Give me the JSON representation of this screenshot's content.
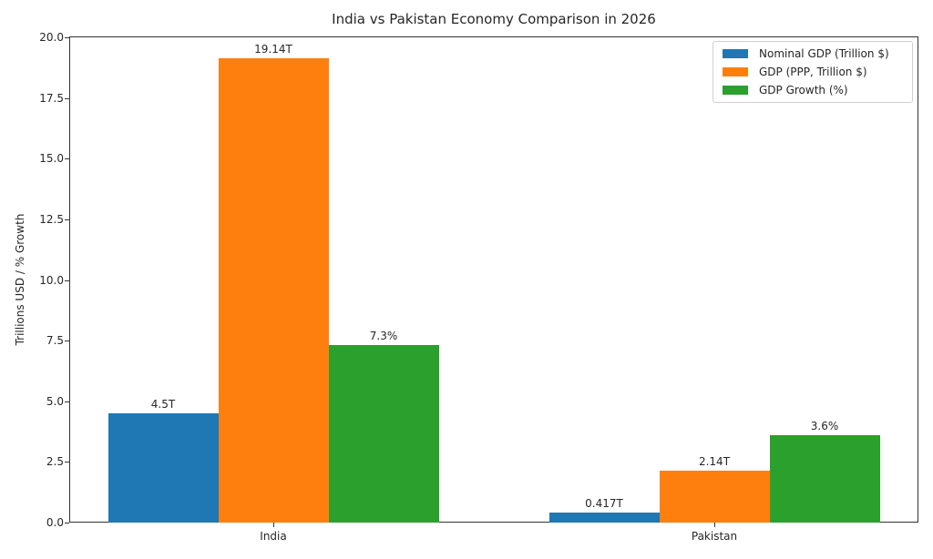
{
  "chart_data": {
    "type": "bar",
    "title": "India vs Pakistan Economy Comparison in 2026",
    "xlabel": "",
    "ylabel": "Trillions USD / % Growth",
    "ylim": [
      0,
      20
    ],
    "yticks": [
      "0.0",
      "2.5",
      "5.0",
      "7.5",
      "10.0",
      "12.5",
      "15.0",
      "17.5",
      "20.0"
    ],
    "categories": [
      "India",
      "Pakistan"
    ],
    "series": [
      {
        "name": "Nominal GDP (Trillion $)",
        "color": "#1f77b4",
        "values": [
          4.5,
          0.417
        ],
        "labels": [
          "4.5T",
          "0.417T"
        ]
      },
      {
        "name": "GDP (PPP, Trillion $)",
        "color": "#ff7f0e",
        "values": [
          19.14,
          2.14
        ],
        "labels": [
          "19.14T",
          "2.14T"
        ]
      },
      {
        "name": "GDP Growth (%)",
        "color": "#2ca02c",
        "values": [
          7.3,
          3.6
        ],
        "labels": [
          "7.3%",
          "3.6%"
        ]
      }
    ],
    "legend_position": "upper right",
    "grid": false
  }
}
